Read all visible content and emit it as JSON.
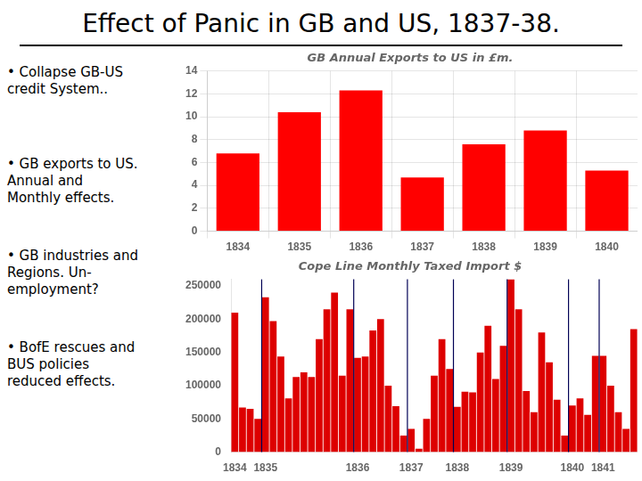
{
  "title": "Effect of Panic in GB and US, 1837-38.",
  "annotations": [
    "• Collapse GB-US\ncredit System..",
    "• GB exports to US.\nAnnual and\nMonthly effects.",
    "• GB industries and\nRegions. Un-\nemployment?",
    "• BofE rescues and\nBUS policies\nreduced effects."
  ],
  "chart_data": [
    {
      "type": "bar",
      "title": "GB Annual Exports to US in £m.",
      "categories": [
        "1834",
        "1835",
        "1836",
        "1837",
        "1838",
        "1839",
        "1840"
      ],
      "values": [
        6.8,
        10.4,
        12.3,
        4.7,
        7.6,
        8.8,
        5.3
      ],
      "color": "#ff0000",
      "ylim": [
        0,
        14
      ],
      "yticks": [
        0,
        2,
        4,
        6,
        8,
        10,
        12,
        14
      ],
      "grid": true
    },
    {
      "type": "bar",
      "title": "Cope Line Monthly Taxed Import $",
      "categories": [
        "1834",
        null,
        null,
        null,
        "1835",
        null,
        null,
        null,
        null,
        null,
        null,
        null,
        null,
        null,
        null,
        null,
        "1836",
        null,
        null,
        null,
        null,
        null,
        null,
        "1837",
        null,
        null,
        null,
        null,
        null,
        "1838",
        null,
        null,
        null,
        null,
        null,
        null,
        "1839",
        null,
        null,
        null,
        null,
        null,
        null,
        null,
        "1840",
        null,
        null,
        null,
        "1841",
        null,
        null,
        null,
        null
      ],
      "values": [
        210000,
        67000,
        65000,
        50000,
        233000,
        197000,
        144000,
        81000,
        113000,
        120000,
        113000,
        170000,
        215000,
        240000,
        115000,
        215000,
        142000,
        144000,
        183000,
        200000,
        100000,
        69000,
        25000,
        35000,
        5000,
        50000,
        115000,
        170000,
        125000,
        68000,
        91000,
        90000,
        150000,
        190000,
        110000,
        160000,
        260000,
        215000,
        92000,
        60000,
        180000,
        135000,
        79000,
        25000,
        70000,
        81000,
        56000,
        145000,
        145000,
        100000,
        60000,
        35000,
        185000
      ],
      "color": "#dd0000",
      "ylim": [
        0,
        260000
      ],
      "yticks": [
        0,
        50000,
        100000,
        150000,
        200000,
        250000
      ],
      "grid": false
    }
  ]
}
